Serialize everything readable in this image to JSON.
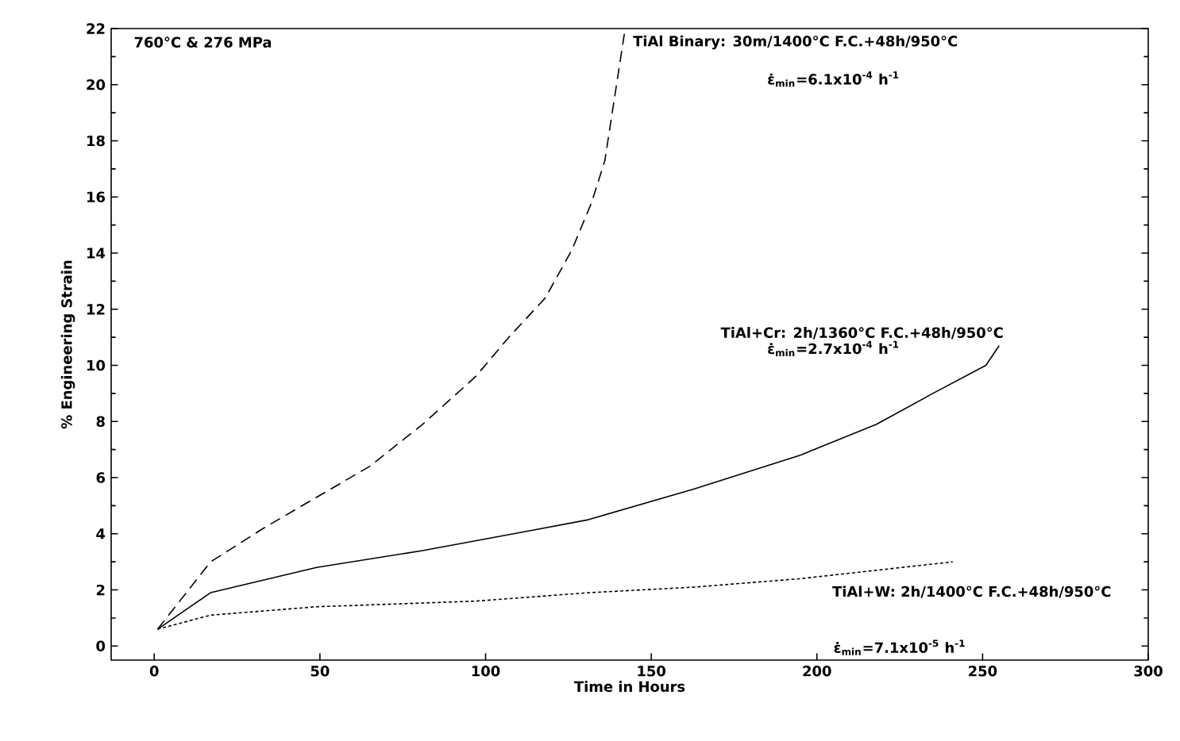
{
  "chart_data": {
    "type": "line",
    "xlabel": "Time in Hours",
    "ylabel": "% Engineering Strain",
    "xlim": [
      -13,
      300
    ],
    "ylim": [
      -0.5,
      22
    ],
    "xticks": [
      0,
      50,
      100,
      150,
      200,
      250,
      300
    ],
    "yticks": [
      0,
      2,
      4,
      6,
      8,
      10,
      12,
      14,
      16,
      18,
      20,
      22
    ],
    "grid": false,
    "marker": "none",
    "annotations": [
      "760°C & 276 MPa",
      {
        "text": "TiAl Binary: 30m/1400°C F.C.+48h/950°C",
        "x": 142,
        "y": 21.9
      },
      "ε̇$_{min}$=6.1x10$^{-4}$ h$^{-1}$",
      {
        "text": "TiAl+Cr: 2h/1360°C F.C.+48h/950°C",
        "x": 255,
        "y": 10.7
      },
      "ε̇$_{min}$=2.7x10$^{-4}$ h$^{-1}$",
      {
        "text": "TiAl+W: 2h/1400°C F.C.+48h/950°C",
        "x": 241,
        "y": 3.0
      },
      "ε̇$_{min}$=7.1x10$^{-5}$ h$^{-1}$"
    ],
    "series": [
      {
        "color": "#000000",
        "line_style": "dashed",
        "x": [
          1,
          17,
          33,
          49,
          65,
          81,
          97,
          107,
          118,
          126,
          132,
          136,
          139,
          142
        ],
        "values": [
          0.6,
          3.0,
          4.2,
          5.3,
          6.4,
          7.9,
          9.6,
          11,
          12.4,
          14.1,
          15.8,
          17.3,
          19.6,
          21.9
        ]
      },
      {
        "color": "#000000",
        "line_style": "solid",
        "x": [
          1,
          17,
          49,
          81,
          113,
          131,
          163,
          195,
          218,
          235,
          251,
          255
        ],
        "values": [
          0.6,
          1.9,
          2.8,
          3.4,
          4.1,
          4.5,
          5.6,
          6.8,
          7.9,
          9.0,
          10.0,
          10.7
        ]
      },
      {
        "color": "#000000",
        "line_style": "dotted",
        "x": [
          1,
          17,
          49,
          97,
          131,
          163,
          195,
          218,
          241
        ],
        "values": [
          0.6,
          1.1,
          1.4,
          1.6,
          1.9,
          2.1,
          2.4,
          2.7,
          3.0
        ]
      }
    ]
  }
}
